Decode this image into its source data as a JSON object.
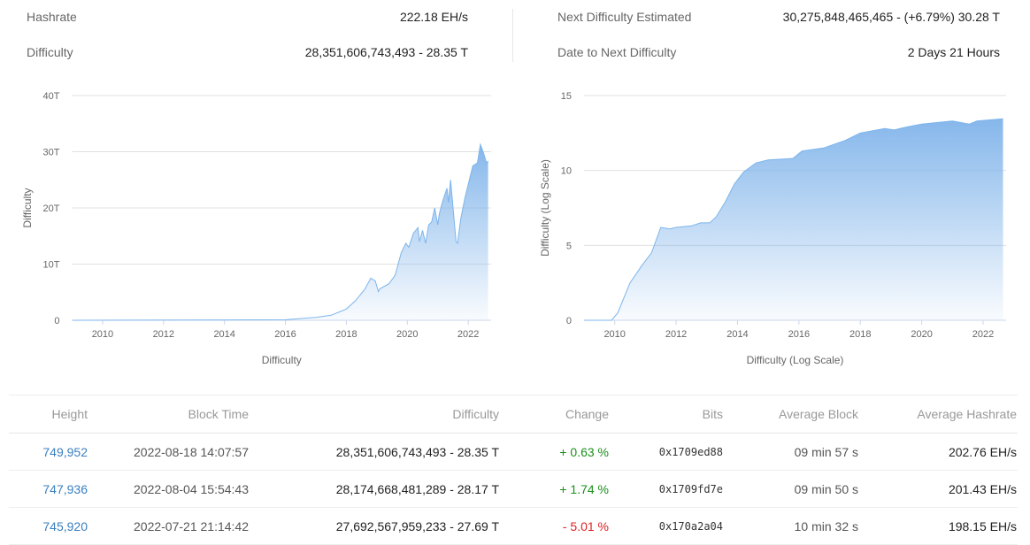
{
  "stats": {
    "hashrate_label": "Hashrate",
    "hashrate": "222.18 EH/s",
    "difficulty_label": "Difficulty",
    "difficulty": "28,351,606,743,493 - 28.35 T",
    "next_label": "Next Difficulty Estimated",
    "next": "30,275,848,465,465 - (+6.79%) 30.28 T",
    "date_label": "Date to Next Difficulty",
    "date": "2 Days 21 Hours"
  },
  "colors": {
    "area": "#7fb3ea",
    "line": "#7cb5ec",
    "positive": "#1a8f1a",
    "negative": "#e02020",
    "link": "#3a7fc1"
  },
  "chart_data": [
    {
      "type": "area",
      "ylabel": "Difficulty",
      "xlabel": "Difficulty",
      "ylim": [
        0,
        40
      ],
      "yticks": [
        "0",
        "10T",
        "20T",
        "30T",
        "40T"
      ],
      "xticks": [
        "2010",
        "2012",
        "2014",
        "2016",
        "2018",
        "2020",
        "2022"
      ],
      "grid": true,
      "x": [
        2009,
        2016,
        2017,
        2017.5,
        2018,
        2018.3,
        2018.6,
        2018.8,
        2018.95,
        2019.05,
        2019.1,
        2019.4,
        2019.6,
        2019.8,
        2019.95,
        2020.05,
        2020.2,
        2020.35,
        2020.4,
        2020.5,
        2020.6,
        2020.7,
        2020.8,
        2020.9,
        2021,
        2021.05,
        2021.15,
        2021.3,
        2021.35,
        2021.42,
        2021.5,
        2021.6,
        2021.65,
        2021.75,
        2021.9,
        2022,
        2022.15,
        2022.3,
        2022.4,
        2022.5,
        2022.6,
        2022.65
      ],
      "y": [
        0,
        0.1,
        0.5,
        0.9,
        2.0,
        3.5,
        5.5,
        7.5,
        7.0,
        5.1,
        5.6,
        6.5,
        8,
        12,
        13.7,
        13,
        15.5,
        16.5,
        14,
        16,
        13.7,
        17,
        17.5,
        20,
        17,
        19,
        21,
        23.5,
        21,
        25,
        20,
        14,
        13.7,
        18,
        22,
        24.2,
        27.5,
        28,
        31.3,
        29.8,
        28,
        28.35
      ]
    },
    {
      "type": "area",
      "ylabel": "Difficulty (Log Scale)",
      "xlabel": "Difficulty (Log Scale)",
      "ylim": [
        0,
        15
      ],
      "yticks": [
        "0",
        "5",
        "10",
        "15"
      ],
      "xticks": [
        "2010",
        "2012",
        "2014",
        "2016",
        "2018",
        "2020",
        "2022"
      ],
      "grid": true,
      "x": [
        2009,
        2009.9,
        2010.1,
        2010.3,
        2010.5,
        2010.9,
        2011.2,
        2011.5,
        2011.8,
        2012,
        2012.5,
        2012.8,
        2013.1,
        2013.3,
        2013.6,
        2013.9,
        2014.2,
        2014.6,
        2015,
        2015.8,
        2016.1,
        2016.8,
        2017.5,
        2018,
        2018.8,
        2019.1,
        2019.5,
        2020,
        2021,
        2021.55,
        2021.8,
        2022.65
      ],
      "y": [
        0,
        0,
        0.5,
        1.5,
        2.5,
        3.7,
        4.5,
        6.2,
        6.1,
        6.2,
        6.3,
        6.5,
        6.5,
        6.9,
        7.9,
        9.1,
        9.9,
        10.5,
        10.7,
        10.8,
        11.3,
        11.5,
        12,
        12.5,
        12.8,
        12.7,
        12.9,
        13.1,
        13.3,
        13.1,
        13.3,
        13.45
      ]
    }
  ],
  "table": {
    "headers": [
      "Height",
      "Block Time",
      "Difficulty",
      "Change",
      "Bits",
      "Average Block",
      "Average Hashrate"
    ],
    "rows": [
      [
        "749,952",
        "2022-08-18 14:07:57",
        "28,351,606,743,493 - 28.35 T",
        "+ 0.63 %",
        "0x1709ed88",
        "09 min 57 s",
        "202.76 EH/s"
      ],
      [
        "747,936",
        "2022-08-04 15:54:43",
        "28,174,668,481,289 - 28.17 T",
        "+ 1.74 %",
        "0x1709fd7e",
        "09 min 50 s",
        "201.43 EH/s"
      ],
      [
        "745,920",
        "2022-07-21 21:14:42",
        "27,692,567,959,233 - 27.69 T",
        "- 5.01 %",
        "0x170a2a04",
        "10 min 32 s",
        "198.15 EH/s"
      ]
    ]
  }
}
